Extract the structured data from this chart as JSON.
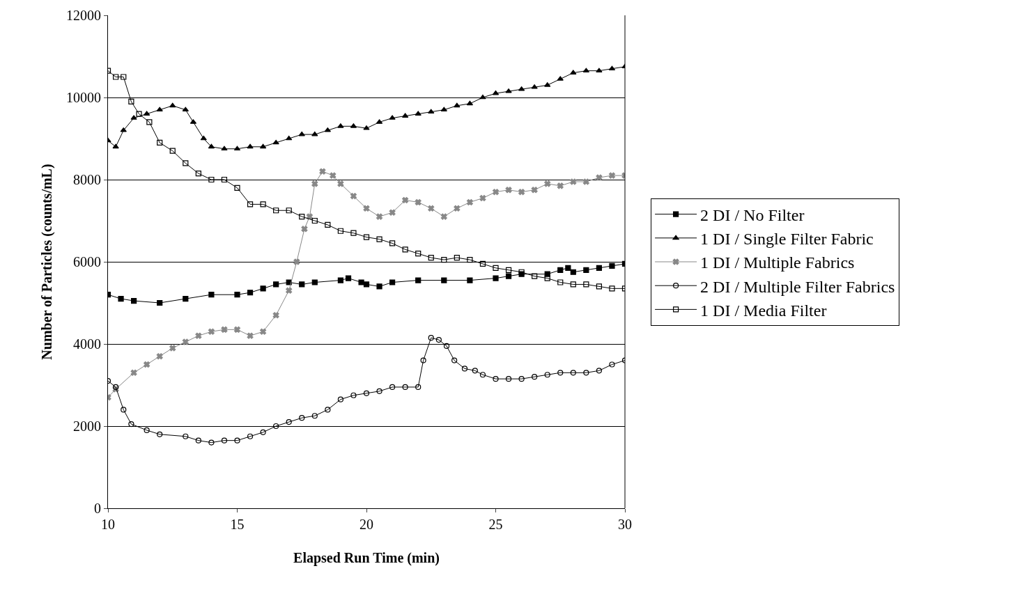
{
  "chart_data": {
    "type": "line",
    "xlabel": "Elapsed Run Time (min)",
    "ylabel": "Number of Particles (counts/mL)",
    "xlim": [
      10,
      30
    ],
    "xticks": [
      10,
      15,
      20,
      25,
      30
    ],
    "ylim": [
      0,
      12000
    ],
    "yticks": [
      0,
      2000,
      4000,
      6000,
      8000,
      10000,
      12000
    ],
    "grid": "y",
    "legend": "right",
    "line_style": "solid",
    "series": [
      {
        "name": "2 DI / No Filter",
        "color": "#000000",
        "marker": "square",
        "x": [
          10,
          10.5,
          11,
          12,
          13,
          14,
          15,
          15.5,
          16,
          16.5,
          17,
          17.5,
          18,
          19,
          19.3,
          19.8,
          20,
          20.5,
          21,
          22,
          23,
          24,
          25,
          25.5,
          26,
          27,
          27.5,
          27.8,
          28,
          28.5,
          29,
          29.5,
          30
        ],
        "values": [
          5200,
          5100,
          5050,
          5000,
          5100,
          5200,
          5200,
          5250,
          5350,
          5450,
          5500,
          5450,
          5500,
          5550,
          5600,
          5500,
          5450,
          5400,
          5500,
          5550,
          5550,
          5550,
          5600,
          5650,
          5700,
          5700,
          5800,
          5850,
          5750,
          5800,
          5850,
          5900,
          5950
        ]
      },
      {
        "name": "1 DI / Single Filter Fabric",
        "color": "#000000",
        "marker": "triangle",
        "x": [
          10,
          10.3,
          10.6,
          11,
          11.5,
          12,
          12.5,
          13,
          13.3,
          13.7,
          14,
          14.5,
          15,
          15.5,
          16,
          16.5,
          17,
          17.5,
          18,
          18.5,
          19,
          19.5,
          20,
          20.5,
          21,
          21.5,
          22,
          22.5,
          23,
          23.5,
          24,
          24.5,
          25,
          25.5,
          26,
          26.5,
          27,
          27.5,
          28,
          28.5,
          29,
          29.5,
          30
        ],
        "values": [
          8950,
          8800,
          9200,
          9500,
          9600,
          9700,
          9800,
          9700,
          9400,
          9000,
          8800,
          8750,
          8750,
          8800,
          8800,
          8900,
          9000,
          9100,
          9100,
          9200,
          9300,
          9300,
          9250,
          9400,
          9500,
          9550,
          9600,
          9650,
          9700,
          9800,
          9850,
          10000,
          10100,
          10150,
          10200,
          10250,
          10300,
          10450,
          10600,
          10650,
          10650,
          10700,
          10750
        ]
      },
      {
        "name": "1 DI / Multiple Fabrics",
        "color": "#888888",
        "marker": "cross",
        "x": [
          10,
          10.3,
          11,
          11.5,
          12,
          12.5,
          13,
          13.5,
          14,
          14.5,
          15,
          15.5,
          16,
          16.5,
          17,
          17.3,
          17.6,
          17.8,
          18,
          18.3,
          18.7,
          19,
          19.5,
          20,
          20.5,
          21,
          21.5,
          22,
          22.5,
          23,
          23.5,
          24,
          24.5,
          25,
          25.5,
          26,
          26.5,
          27,
          27.5,
          28,
          28.5,
          29,
          29.5,
          30
        ],
        "values": [
          2700,
          2900,
          3300,
          3500,
          3700,
          3900,
          4050,
          4200,
          4300,
          4350,
          4350,
          4200,
          4300,
          4700,
          5300,
          6000,
          6800,
          7100,
          7900,
          8200,
          8100,
          7900,
          7600,
          7300,
          7100,
          7200,
          7500,
          7450,
          7300,
          7100,
          7300,
          7450,
          7550,
          7700,
          7750,
          7700,
          7750,
          7900,
          7850,
          7950,
          7950,
          8050,
          8100,
          8100
        ]
      },
      {
        "name": "2 DI / Multiple Filter Fabrics",
        "color": "#000000",
        "marker": "circle",
        "x": [
          10,
          10.3,
          10.6,
          10.9,
          11.5,
          12,
          13,
          13.5,
          14,
          14.5,
          15,
          15.5,
          16,
          16.5,
          17,
          17.5,
          18,
          18.5,
          19,
          19.5,
          20,
          20.5,
          21,
          21.5,
          22,
          22.2,
          22.5,
          22.8,
          23.1,
          23.4,
          23.8,
          24.2,
          24.5,
          25,
          25.5,
          26,
          26.5,
          27,
          27.5,
          28,
          28.5,
          29,
          29.5,
          30
        ],
        "values": [
          3100,
          2950,
          2400,
          2050,
          1900,
          1800,
          1750,
          1650,
          1600,
          1650,
          1650,
          1750,
          1850,
          2000,
          2100,
          2200,
          2250,
          2400,
          2650,
          2750,
          2800,
          2850,
          2950,
          2950,
          2950,
          3600,
          4150,
          4100,
          3950,
          3600,
          3400,
          3350,
          3250,
          3150,
          3150,
          3150,
          3200,
          3250,
          3300,
          3300,
          3300,
          3350,
          3500,
          3600
        ]
      },
      {
        "name": "1 DI / Media Filter",
        "color": "#000000",
        "marker": "square",
        "x": [
          10,
          10.3,
          10.6,
          10.9,
          11.2,
          11.6,
          12,
          12.5,
          13,
          13.5,
          14,
          14.5,
          15,
          15.5,
          16,
          16.5,
          17,
          17.5,
          18,
          18.5,
          19,
          19.5,
          20,
          20.5,
          21,
          21.5,
          22,
          22.5,
          23,
          23.5,
          24,
          24.5,
          25,
          25.5,
          26,
          26.5,
          27,
          27.5,
          28,
          28.5,
          29,
          29.5,
          30
        ],
        "values": [
          10650,
          10500,
          10500,
          9900,
          9600,
          9400,
          8900,
          8700,
          8400,
          8150,
          8000,
          8000,
          7800,
          7400,
          7400,
          7250,
          7250,
          7100,
          7000,
          6900,
          6750,
          6700,
          6600,
          6550,
          6450,
          6300,
          6200,
          6100,
          6050,
          6100,
          6050,
          5950,
          5850,
          5800,
          5750,
          5650,
          5600,
          5500,
          5450,
          5450,
          5400,
          5350,
          5350
        ]
      }
    ]
  }
}
